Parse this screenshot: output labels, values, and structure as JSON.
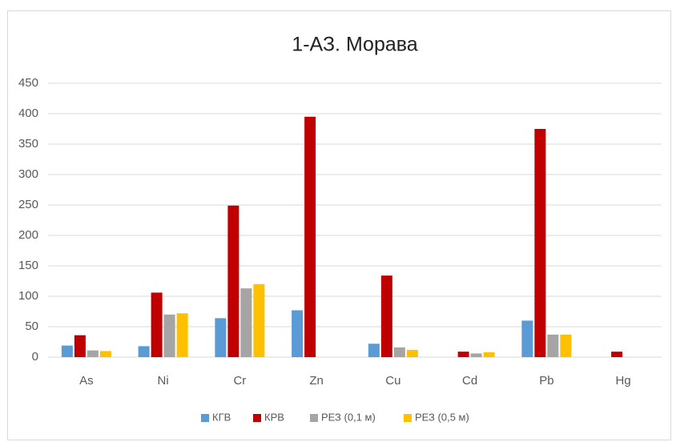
{
  "chart_data": {
    "type": "bar",
    "title": "1-АЗ. Морава",
    "categories": [
      "As",
      "Ni",
      "Cr",
      "Zn",
      "Cu",
      "Cd",
      "Pb",
      "Hg"
    ],
    "series": [
      {
        "name": "КГВ",
        "color": "#5b9bd5",
        "values": [
          19,
          18,
          64,
          77,
          22,
          null,
          60,
          null
        ]
      },
      {
        "name": "КРВ",
        "color": "#c00000",
        "values": [
          36,
          106,
          249,
          395,
          134,
          9,
          375,
          9
        ]
      },
      {
        "name": "РЕЗ (0,1 м)",
        "color": "#a5a5a5",
        "values": [
          11,
          70,
          113,
          null,
          16,
          6,
          37,
          null
        ]
      },
      {
        "name": "РЕЗ (0,5 м)",
        "color": "#ffc000",
        "values": [
          10,
          72,
          120,
          null,
          12,
          8,
          37,
          null
        ]
      }
    ],
    "ylim": [
      0,
      450
    ],
    "yticks": [
      0,
      50,
      100,
      150,
      200,
      250,
      300,
      350,
      400,
      450
    ],
    "grid": true,
    "legend": "bottom"
  }
}
